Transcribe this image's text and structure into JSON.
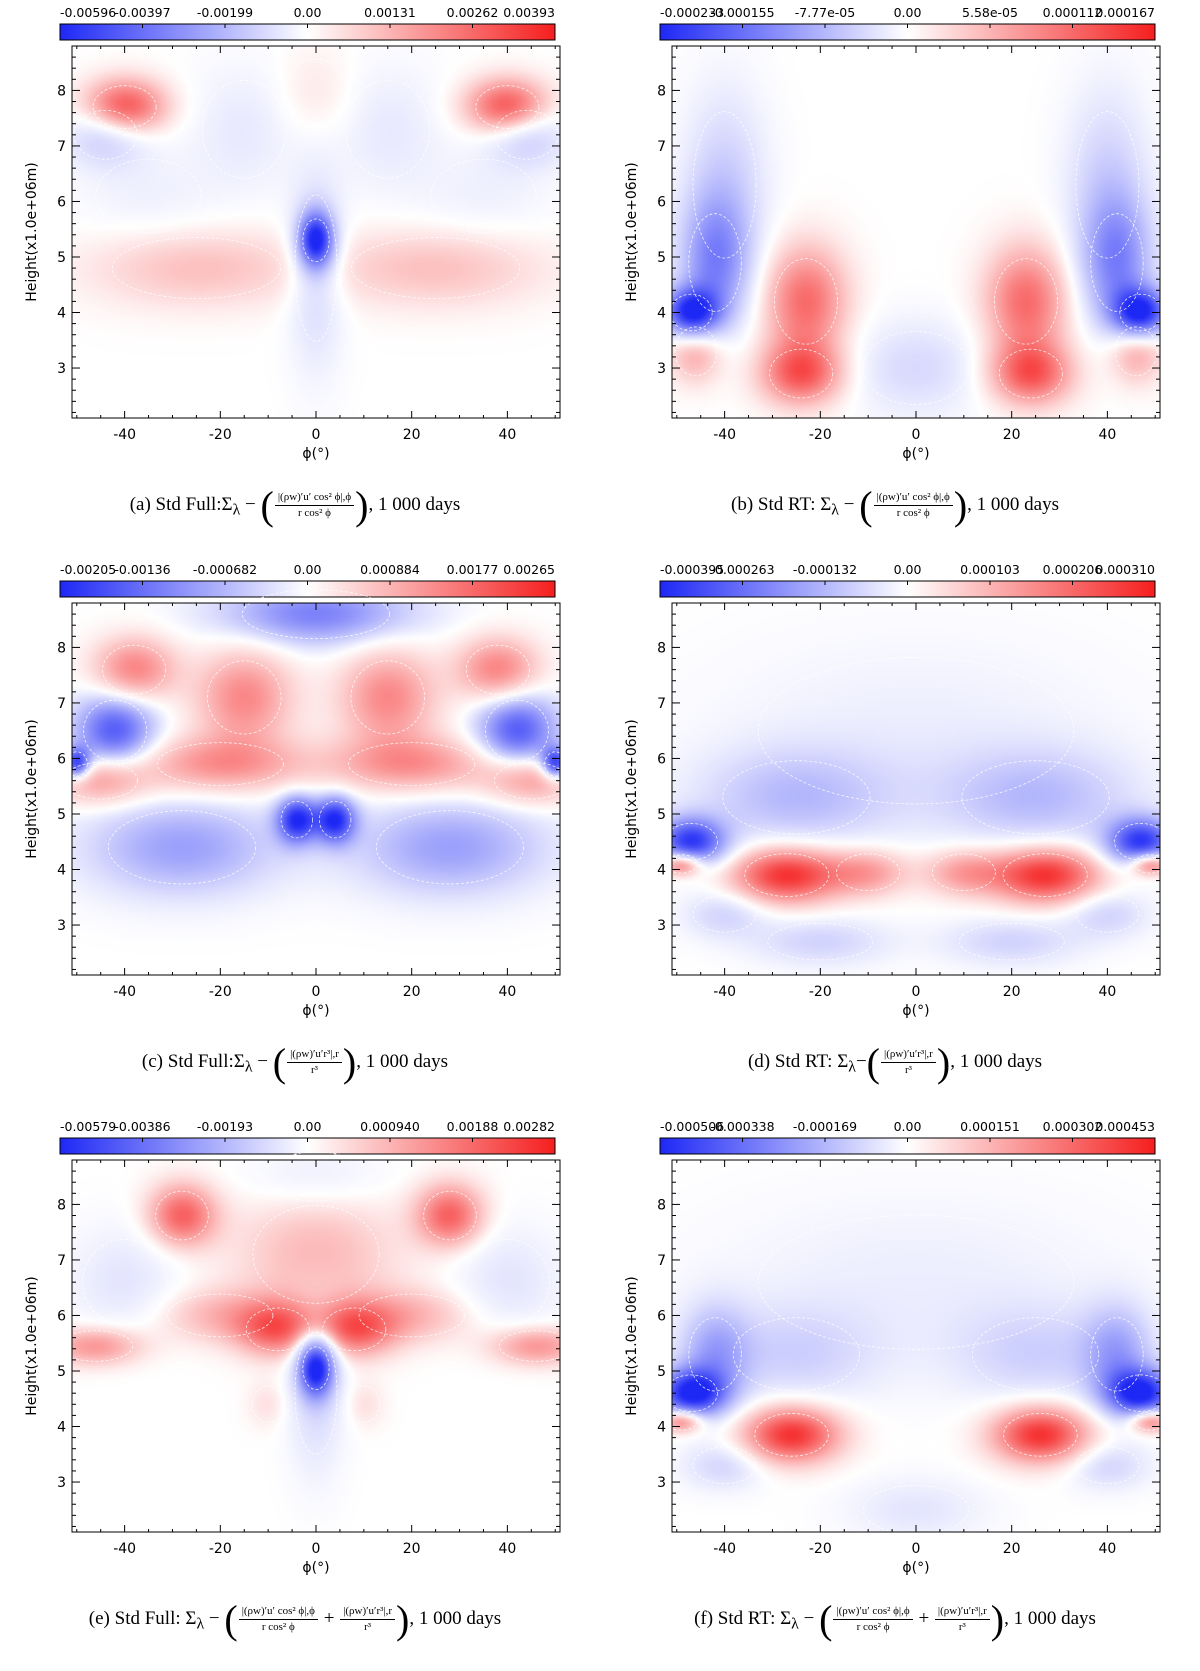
{
  "chart_data": [
    {
      "id": "a",
      "type": "heatmap",
      "colorbar_ticks": [
        "-0.00596",
        "-0.00397",
        "-0.00199",
        "0.00",
        "0.00131",
        "0.00262",
        "0.00393"
      ],
      "colorbar_range": [
        -0.00596,
        0.00393
      ],
      "x_ticks": [
        "-40",
        "-20",
        "0",
        "20",
        "40"
      ],
      "xlim": [
        -51,
        51
      ],
      "y_ticks": [
        "3",
        "4",
        "5",
        "6",
        "7",
        "8"
      ],
      "ylim": [
        2.1,
        8.8
      ],
      "xlabel": "ϕ(°)",
      "ylabel": "Height(x1.0e+06m)",
      "caption": {
        "prefix": "(a) Std Full:Σ",
        "sub": "λ",
        "mid": " − ",
        "num": "|(ρw)′u′ cos² ϕ|,ϕ",
        "den": "r cos² ϕ",
        "suffix": ", 1 000 days"
      },
      "features": [
        {
          "x": 0,
          "y": 5.3,
          "v": -0.0058,
          "sx": 2.5,
          "sy": 0.35
        },
        {
          "x": 0,
          "y": 4.8,
          "v": -0.0012,
          "sx": 4,
          "sy": 1.2
        },
        {
          "x": -40,
          "y": 7.7,
          "v": 0.0032,
          "sx": 6,
          "sy": 0.35
        },
        {
          "x": 40,
          "y": 7.7,
          "v": 0.0032,
          "sx": 6,
          "sy": 0.35
        },
        {
          "x": -44,
          "y": 7.2,
          "v": -0.0015,
          "sx": 6,
          "sy": 0.4
        },
        {
          "x": 44,
          "y": 7.2,
          "v": -0.0015,
          "sx": 6,
          "sy": 0.4
        },
        {
          "x": -25,
          "y": 4.8,
          "v": 0.0011,
          "sx": 16,
          "sy": 0.5
        },
        {
          "x": 25,
          "y": 4.8,
          "v": 0.0011,
          "sx": 16,
          "sy": 0.5
        },
        {
          "x": 0,
          "y": 7.9,
          "v": 0.0005,
          "sx": 6,
          "sy": 0.6
        },
        {
          "x": -15,
          "y": 7.3,
          "v": -0.0006,
          "sx": 8,
          "sy": 0.8
        },
        {
          "x": 15,
          "y": 7.3,
          "v": -0.0006,
          "sx": 8,
          "sy": 0.8
        },
        {
          "x": -35,
          "y": 6.1,
          "v": -0.0004,
          "sx": 10,
          "sy": 0.6
        },
        {
          "x": 35,
          "y": 6.1,
          "v": -0.0004,
          "sx": 10,
          "sy": 0.6
        }
      ]
    },
    {
      "id": "b",
      "type": "heatmap",
      "colorbar_ticks": [
        "-0.000233",
        "-0.000155",
        "-7.77e-05",
        "0.00",
        "5.58e-05",
        "0.000112",
        "0.000167"
      ],
      "colorbar_range": [
        -0.000233,
        0.000167
      ],
      "x_ticks": [
        "-40",
        "-20",
        "0",
        "20",
        "40"
      ],
      "xlim": [
        -51,
        51
      ],
      "y_ticks": [
        "3",
        "4",
        "5",
        "6",
        "7",
        "8"
      ],
      "ylim": [
        2.1,
        8.8
      ],
      "xlabel": "ϕ(°)",
      "ylabel": "Height(x1.0e+06m)",
      "caption": {
        "prefix": "(b) Std RT: Σ",
        "sub": "λ",
        "mid": " − ",
        "num": "|(ρw)′u′ cos² ϕ|,ϕ",
        "den": "r cos² ϕ",
        "suffix": ", 1 000 days"
      },
      "features": [
        {
          "x": -47,
          "y": 4.0,
          "v": -0.00023,
          "sx": 4,
          "sy": 0.3
        },
        {
          "x": 47,
          "y": 4.0,
          "v": -0.00023,
          "sx": 4,
          "sy": 0.3
        },
        {
          "x": -42,
          "y": 4.9,
          "v": -0.00012,
          "sx": 5,
          "sy": 0.8
        },
        {
          "x": 42,
          "y": 4.9,
          "v": -0.00012,
          "sx": 5,
          "sy": 0.8
        },
        {
          "x": -23,
          "y": 4.2,
          "v": 0.00011,
          "sx": 6,
          "sy": 0.7
        },
        {
          "x": 23,
          "y": 4.2,
          "v": 0.00011,
          "sx": 6,
          "sy": 0.7
        },
        {
          "x": -24,
          "y": 2.9,
          "v": 0.00012,
          "sx": 6,
          "sy": 0.4
        },
        {
          "x": 24,
          "y": 2.9,
          "v": 0.00012,
          "sx": 6,
          "sy": 0.4
        },
        {
          "x": 0,
          "y": 3.0,
          "v": -4e-05,
          "sx": 10,
          "sy": 0.6
        },
        {
          "x": -40,
          "y": 6.3,
          "v": -5e-05,
          "sx": 6,
          "sy": 1.2
        },
        {
          "x": 40,
          "y": 6.3,
          "v": -5e-05,
          "sx": 6,
          "sy": 1.2
        },
        {
          "x": -46,
          "y": 3.3,
          "v": 7e-05,
          "sx": 4,
          "sy": 0.4
        },
        {
          "x": 46,
          "y": 3.3,
          "v": 7e-05,
          "sx": 4,
          "sy": 0.4
        }
      ]
    },
    {
      "id": "c",
      "type": "heatmap",
      "colorbar_ticks": [
        "-0.00205",
        "-0.00136",
        "-0.000682",
        "0.00",
        "0.000884",
        "0.00177",
        "0.00265"
      ],
      "colorbar_range": [
        -0.00205,
        0.00265
      ],
      "x_ticks": [
        "-40",
        "-20",
        "0",
        "20",
        "40"
      ],
      "xlim": [
        -51,
        51
      ],
      "y_ticks": [
        "3",
        "4",
        "5",
        "6",
        "7",
        "8"
      ],
      "ylim": [
        2.1,
        8.8
      ],
      "xlabel": "ϕ(°)",
      "ylabel": "Height(x1.0e+06m)",
      "caption": {
        "prefix": "(c) Std Full:Σ",
        "sub": "λ",
        "mid": " − ",
        "num": "|(ρw)′u′r³|,r",
        "den": "r³",
        "suffix": ", 1 000 days"
      },
      "features": [
        {
          "x": 0,
          "y": 8.6,
          "v": -0.0012,
          "sx": 14,
          "sy": 0.4
        },
        {
          "x": -38,
          "y": 7.6,
          "v": 0.0015,
          "sx": 6,
          "sy": 0.4
        },
        {
          "x": 38,
          "y": 7.6,
          "v": 0.0015,
          "sx": 6,
          "sy": 0.4
        },
        {
          "x": -42,
          "y": 6.5,
          "v": -0.0016,
          "sx": 6,
          "sy": 0.5
        },
        {
          "x": 42,
          "y": 6.5,
          "v": -0.0016,
          "sx": 6,
          "sy": 0.5
        },
        {
          "x": -15,
          "y": 7.1,
          "v": 0.0014,
          "sx": 7,
          "sy": 0.6
        },
        {
          "x": 15,
          "y": 7.1,
          "v": 0.0014,
          "sx": 7,
          "sy": 0.6
        },
        {
          "x": -20,
          "y": 5.9,
          "v": 0.0013,
          "sx": 12,
          "sy": 0.35
        },
        {
          "x": 20,
          "y": 5.9,
          "v": 0.0013,
          "sx": 12,
          "sy": 0.35
        },
        {
          "x": -45,
          "y": 5.6,
          "v": 0.0012,
          "sx": 7,
          "sy": 0.3
        },
        {
          "x": 45,
          "y": 5.6,
          "v": 0.0012,
          "sx": 7,
          "sy": 0.3
        },
        {
          "x": -4,
          "y": 4.9,
          "v": -0.0019,
          "sx": 3,
          "sy": 0.3
        },
        {
          "x": 4,
          "y": 4.9,
          "v": -0.0019,
          "sx": 3,
          "sy": 0.3
        },
        {
          "x": -28,
          "y": 4.4,
          "v": -0.0009,
          "sx": 14,
          "sy": 0.6
        },
        {
          "x": 28,
          "y": 4.4,
          "v": -0.0009,
          "sx": 14,
          "sy": 0.6
        },
        {
          "x": -50,
          "y": 5.9,
          "v": -0.002,
          "sx": 2,
          "sy": 0.2
        },
        {
          "x": 50,
          "y": 5.9,
          "v": -0.002,
          "sx": 2,
          "sy": 0.2
        }
      ]
    },
    {
      "id": "d",
      "type": "heatmap",
      "colorbar_ticks": [
        "-0.000395",
        "-0.000263",
        "-0.000132",
        "0.00",
        "0.000103",
        "0.000206",
        "0.000310"
      ],
      "colorbar_range": [
        -0.000395,
        0.00031
      ],
      "x_ticks": [
        "-40",
        "-20",
        "0",
        "20",
        "40"
      ],
      "xlim": [
        -51,
        51
      ],
      "y_ticks": [
        "3",
        "4",
        "5",
        "6",
        "7",
        "8"
      ],
      "ylim": [
        2.1,
        8.8
      ],
      "xlabel": "ϕ(°)",
      "ylabel": "Height(x1.0e+06m)",
      "caption": {
        "prefix": "(d) Std RT: Σ",
        "sub": "λ",
        "mid": "−",
        "num": "|(ρw)′u′r³|,r",
        "den": "r³",
        "suffix": ", 1 000 days"
      },
      "features": [
        {
          "x": -47,
          "y": 4.5,
          "v": -0.00036,
          "sx": 5,
          "sy": 0.3
        },
        {
          "x": 47,
          "y": 4.5,
          "v": -0.00036,
          "sx": 5,
          "sy": 0.3
        },
        {
          "x": -25,
          "y": 5.3,
          "v": -0.00012,
          "sx": 14,
          "sy": 0.6
        },
        {
          "x": 25,
          "y": 5.3,
          "v": -0.00012,
          "sx": 14,
          "sy": 0.6
        },
        {
          "x": -27,
          "y": 3.9,
          "v": 0.00029,
          "sx": 8,
          "sy": 0.35
        },
        {
          "x": 27,
          "y": 3.9,
          "v": 0.00029,
          "sx": 8,
          "sy": 0.35
        },
        {
          "x": -10,
          "y": 3.95,
          "v": 0.00013,
          "sx": 6,
          "sy": 0.3
        },
        {
          "x": 10,
          "y": 3.95,
          "v": 0.00013,
          "sx": 6,
          "sy": 0.3
        },
        {
          "x": -49,
          "y": 4.1,
          "v": 0.00025,
          "sx": 3,
          "sy": 0.15
        },
        {
          "x": 49,
          "y": 4.1,
          "v": 0.00025,
          "sx": 3,
          "sy": 0.15
        },
        {
          "x": -20,
          "y": 2.7,
          "v": -8e-05,
          "sx": 10,
          "sy": 0.3
        },
        {
          "x": 20,
          "y": 2.7,
          "v": -8e-05,
          "sx": 10,
          "sy": 0.3
        },
        {
          "x": -40,
          "y": 3.2,
          "v": -8e-05,
          "sx": 6,
          "sy": 0.3
        },
        {
          "x": 40,
          "y": 3.2,
          "v": -8e-05,
          "sx": 6,
          "sy": 0.3
        },
        {
          "x": 0,
          "y": 6.5,
          "v": -3e-05,
          "sx": 30,
          "sy": 1.2
        }
      ]
    },
    {
      "id": "e",
      "type": "heatmap",
      "colorbar_ticks": [
        "-0.00579",
        "-0.00386",
        "-0.00193",
        "0.00",
        "0.000940",
        "0.00188",
        "0.00282"
      ],
      "colorbar_range": [
        -0.00579,
        0.00282
      ],
      "x_ticks": [
        "-40",
        "-20",
        "0",
        "20",
        "40"
      ],
      "xlim": [
        -51,
        51
      ],
      "y_ticks": [
        "3",
        "4",
        "5",
        "6",
        "7",
        "8"
      ],
      "ylim": [
        2.1,
        8.8
      ],
      "xlabel": "ϕ(°)",
      "ylabel": "Height(x1.0e+06m)",
      "caption": {
        "prefix": "(e) Std Full: Σ",
        "sub": "λ",
        "mid": " − ",
        "num": "|(ρw)′u′ cos² ϕ|,ϕ",
        "den": "r cos² ϕ",
        "plus": " + ",
        "num2": "|(ρw)′u′r³|,r",
        "den2": "r³",
        "suffix": ", 1 000 days"
      },
      "features": [
        {
          "x": 0,
          "y": 5.05,
          "v": -0.0057,
          "sx": 2.5,
          "sy": 0.35
        },
        {
          "x": 0,
          "y": 4.6,
          "v": -0.001,
          "sx": 4,
          "sy": 1.0
        },
        {
          "x": -28,
          "y": 7.8,
          "v": 0.002,
          "sx": 5,
          "sy": 0.4
        },
        {
          "x": 28,
          "y": 7.8,
          "v": 0.002,
          "sx": 5,
          "sy": 0.4
        },
        {
          "x": 0,
          "y": 7.1,
          "v": 0.0009,
          "sx": 12,
          "sy": 0.8
        },
        {
          "x": -8,
          "y": 5.75,
          "v": 0.0018,
          "sx": 6,
          "sy": 0.35
        },
        {
          "x": 8,
          "y": 5.75,
          "v": 0.0018,
          "sx": 6,
          "sy": 0.35
        },
        {
          "x": -20,
          "y": 6.0,
          "v": 0.0009,
          "sx": 10,
          "sy": 0.35
        },
        {
          "x": 20,
          "y": 6.0,
          "v": 0.0009,
          "sx": 10,
          "sy": 0.35
        },
        {
          "x": -46,
          "y": 5.45,
          "v": 0.0014,
          "sx": 7,
          "sy": 0.25
        },
        {
          "x": 46,
          "y": 5.45,
          "v": 0.0014,
          "sx": 7,
          "sy": 0.25
        },
        {
          "x": -40,
          "y": 6.6,
          "v": -0.0007,
          "sx": 8,
          "sy": 0.7
        },
        {
          "x": 40,
          "y": 6.6,
          "v": -0.0007,
          "sx": 8,
          "sy": 0.7
        },
        {
          "x": 0,
          "y": 8.5,
          "v": -0.0005,
          "sx": 10,
          "sy": 0.4
        },
        {
          "x": -10,
          "y": 4.4,
          "v": 0.0004,
          "sx": 3,
          "sy": 0.3
        },
        {
          "x": 10,
          "y": 4.4,
          "v": 0.0004,
          "sx": 3,
          "sy": 0.3
        }
      ]
    },
    {
      "id": "f",
      "type": "heatmap",
      "colorbar_ticks": [
        "-0.000506",
        "-0.000338",
        "-0.000169",
        "0.00",
        "0.000151",
        "0.000302",
        "0.000453"
      ],
      "colorbar_range": [
        -0.000506,
        0.000453
      ],
      "x_ticks": [
        "-40",
        "-20",
        "0",
        "20",
        "40"
      ],
      "xlim": [
        -51,
        51
      ],
      "y_ticks": [
        "3",
        "4",
        "5",
        "6",
        "7",
        "8"
      ],
      "ylim": [
        2.1,
        8.8
      ],
      "xlabel": "ϕ(°)",
      "ylabel": "Height(x1.0e+06m)",
      "caption": {
        "prefix": "(f) Std RT: Σ",
        "sub": "λ",
        "mid": " − ",
        "num": "|(ρw)′u′ cos² ϕ|,ϕ",
        "den": "r cos² ϕ",
        "plus": " + ",
        "num2": "|(ρw)′u′r³|,r",
        "den2": "r³",
        "suffix": ", 1 000 days"
      },
      "features": [
        {
          "x": -47,
          "y": 4.6,
          "v": -0.0005,
          "sx": 5,
          "sy": 0.3
        },
        {
          "x": 47,
          "y": 4.6,
          "v": -0.0005,
          "sx": 5,
          "sy": 0.3
        },
        {
          "x": -42,
          "y": 5.3,
          "v": -0.0002,
          "sx": 5,
          "sy": 0.6
        },
        {
          "x": 42,
          "y": 5.3,
          "v": -0.0002,
          "sx": 5,
          "sy": 0.6
        },
        {
          "x": -25,
          "y": 5.3,
          "v": -0.0001,
          "sx": 12,
          "sy": 0.6
        },
        {
          "x": 25,
          "y": 5.3,
          "v": -0.0001,
          "sx": 12,
          "sy": 0.6
        },
        {
          "x": -26,
          "y": 3.85,
          "v": 0.00042,
          "sx": 7,
          "sy": 0.35
        },
        {
          "x": 26,
          "y": 3.85,
          "v": 0.00042,
          "sx": 7,
          "sy": 0.35
        },
        {
          "x": -49,
          "y": 4.1,
          "v": 0.0003,
          "sx": 3,
          "sy": 0.15
        },
        {
          "x": 49,
          "y": 4.1,
          "v": 0.0003,
          "sx": 3,
          "sy": 0.15
        },
        {
          "x": 0,
          "y": 2.5,
          "v": -6e-05,
          "sx": 10,
          "sy": 0.4
        },
        {
          "x": -40,
          "y": 3.3,
          "v": -0.0001,
          "sx": 6,
          "sy": 0.3
        },
        {
          "x": 40,
          "y": 3.3,
          "v": -0.0001,
          "sx": 6,
          "sy": 0.3
        },
        {
          "x": 0,
          "y": 6.6,
          "v": -4e-05,
          "sx": 30,
          "sy": 1.1
        }
      ]
    }
  ]
}
